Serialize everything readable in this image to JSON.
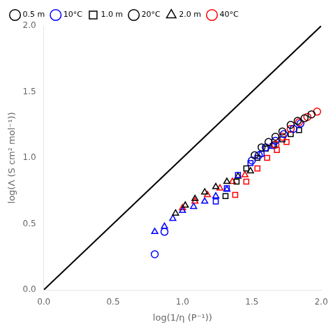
{
  "chart_data": {
    "type": "scatter",
    "xlabel": "log(1/η (P⁻¹))",
    "ylabel": "log(Λ (S cm² mol⁻¹))",
    "xlim": [
      0,
      2
    ],
    "ylim": [
      0,
      2
    ],
    "xticks": [
      {
        "value": 0,
        "label": "0.0"
      },
      0.5,
      {
        "value": 1.0,
        "label": "1.0"
      },
      1.5,
      {
        "value": 2.0,
        "label": "2.0"
      }
    ],
    "yticks": [
      {
        "value": 0,
        "label": "0.0"
      },
      0.5,
      {
        "value": 1.0,
        "label": "1.0"
      },
      1.5,
      {
        "value": 2.0,
        "label": "2.0"
      }
    ],
    "grid": false,
    "legend": "upper left",
    "legend_items": [
      {
        "name": "0.5 m",
        "color": "black",
        "marker": "circle"
      },
      {
        "name": "10°C",
        "color": "blue",
        "marker": "circle"
      },
      {
        "name": "1.0 m",
        "color": "black",
        "marker": "square"
      },
      {
        "name": "20°C",
        "color": "black",
        "marker": "circle"
      },
      {
        "name": "2.0 m",
        "color": "black",
        "marker": "triangle"
      },
      {
        "name": "40°C",
        "color": "red",
        "marker": "circle"
      }
    ],
    "series": [
      {
        "type": "line",
        "color": "black",
        "line_style": "solid",
        "x": [
          0,
          2
        ],
        "values": [
          0,
          2
        ]
      },
      {
        "color": "black",
        "marker": "circle",
        "x": [
          1.52,
          1.57,
          1.62,
          1.67,
          1.72,
          1.78,
          1.83,
          1.88,
          1.93
        ],
        "values": [
          1.02,
          1.08,
          1.12,
          1.16,
          1.2,
          1.25,
          1.28,
          1.3,
          1.33
        ]
      },
      {
        "color": "blue",
        "marker": "circle",
        "x": [
          0.8,
          0.87,
          1.5,
          1.55,
          1.6,
          1.67,
          1.73,
          1.8,
          1.85
        ],
        "values": [
          0.27,
          0.44,
          0.98,
          1.02,
          1.08,
          1.13,
          1.18,
          1.22,
          1.26
        ]
      },
      {
        "color": "red",
        "marker": "circle",
        "x": [
          1.67,
          1.72,
          1.78,
          1.84,
          1.9,
          1.97
        ],
        "values": [
          1.1,
          1.16,
          1.22,
          1.27,
          1.31,
          1.35
        ]
      },
      {
        "color": "black",
        "marker": "square",
        "x": [
          1.31,
          1.39,
          1.46,
          1.54,
          1.6,
          1.66,
          1.72,
          1.78,
          1.84
        ],
        "values": [
          0.71,
          0.82,
          0.92,
          1.0,
          1.07,
          1.1,
          1.14,
          1.18,
          1.21
        ]
      },
      {
        "color": "blue",
        "marker": "square",
        "x": [
          1.24,
          1.32,
          1.4,
          1.49,
          1.57,
          1.65
        ],
        "values": [
          0.67,
          0.77,
          0.87,
          0.96,
          1.03,
          1.09
        ]
      },
      {
        "color": "red",
        "marker": "square",
        "x": [
          1.38,
          1.46,
          1.54,
          1.61,
          1.68,
          1.75
        ],
        "values": [
          0.72,
          0.82,
          0.92,
          1.0,
          1.06,
          1.12
        ]
      },
      {
        "color": "black",
        "marker": "triangle",
        "x": [
          0.95,
          1.02,
          1.09,
          1.16,
          1.24,
          1.32,
          1.4,
          1.49
        ],
        "values": [
          0.58,
          0.64,
          0.69,
          0.74,
          0.78,
          0.82,
          0.86,
          0.9
        ]
      },
      {
        "color": "blue",
        "marker": "triangle",
        "x": [
          0.8,
          0.87,
          0.93,
          1.0,
          1.08,
          1.16,
          1.24,
          1.32
        ],
        "values": [
          0.44,
          0.48,
          0.54,
          0.6,
          0.63,
          0.67,
          0.71,
          0.76
        ]
      },
      {
        "color": "red",
        "marker": "triangle",
        "x": [
          1.0,
          1.09,
          1.18,
          1.27,
          1.36,
          1.45
        ],
        "values": [
          0.62,
          0.67,
          0.72,
          0.77,
          0.82,
          0.87
        ]
      }
    ]
  }
}
